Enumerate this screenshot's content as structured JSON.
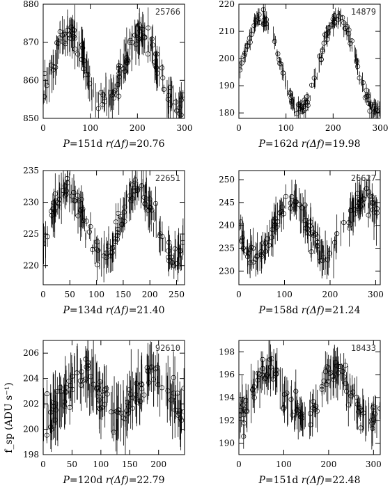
{
  "figure": {
    "ylabel": "f_sp (ADU s⁻¹)"
  },
  "chart_data": [
    {
      "type": "scatter",
      "star_id": "25766",
      "caption": "P=151d r(Δf)=20.76",
      "caption_parts": {
        "prefix": "P",
        "period": "=151d",
        "r": " r(Δf)",
        "rval": "=20.76"
      },
      "period": 151,
      "mean": 863,
      "amplitude": 9,
      "phase_peak": 55,
      "noise": 3,
      "xlim": [
        0,
        300
      ],
      "ylim": [
        850,
        880
      ],
      "xticks": [
        0,
        100,
        200,
        300
      ],
      "yticks": [
        850,
        860,
        870,
        880
      ],
      "xdata_range": [
        0,
        300
      ],
      "n_points": 200
    },
    {
      "type": "scatter",
      "star_id": "14879",
      "caption": "P=162d r(Δf)=19.98",
      "caption_parts": {
        "prefix": "P",
        "period": "=162d",
        "r": " r(Δf)",
        "rval": "=19.98"
      },
      "period": 162,
      "mean": 198,
      "amplitude": 17,
      "phase_peak": 48,
      "noise": 2,
      "xlim": [
        0,
        300
      ],
      "ylim": [
        178,
        220
      ],
      "xticks": [
        0,
        100,
        200,
        300
      ],
      "yticks": [
        180,
        190,
        200,
        210,
        220
      ],
      "xdata_range": [
        0,
        300
      ],
      "n_points": 200
    },
    {
      "type": "scatter",
      "star_id": "22651",
      "caption": "P=134d r(Δf)=21.40",
      "caption_parts": {
        "prefix": "P",
        "period": "=134d",
        "r": " r(Δf)",
        "rval": "=21.40"
      },
      "period": 134,
      "mean": 226.5,
      "amplitude": 5.5,
      "phase_peak": 45,
      "noise": 1.8,
      "xlim": [
        0,
        265
      ],
      "ylim": [
        217,
        235
      ],
      "xticks": [
        0,
        50,
        100,
        150,
        200,
        250
      ],
      "yticks": [
        220,
        225,
        230,
        235
      ],
      "xdata_range": [
        0,
        265
      ],
      "n_points": 200
    },
    {
      "type": "scatter",
      "star_id": "26627",
      "caption": "P=158d r(Δf)=21.24",
      "caption_parts": {
        "prefix": "P",
        "period": "=158d",
        "r": " r(Δf)",
        "rval": "=21.24"
      },
      "period": 158,
      "mean": 239.5,
      "amplitude": 6.5,
      "phase_peak": 115,
      "noise": 2.5,
      "xlim": [
        0,
        310
      ],
      "ylim": [
        227,
        252
      ],
      "xticks": [
        0,
        100,
        200,
        300
      ],
      "yticks": [
        230,
        235,
        240,
        245,
        250
      ],
      "xdata_range": [
        0,
        310
      ],
      "n_points": 200
    },
    {
      "type": "scatter",
      "star_id": "92610",
      "caption": "P=120d r(Δf)=22.79",
      "caption_parts": {
        "prefix": "P",
        "period": "=120d",
        "r": " r(Δf)",
        "rval": "=22.79"
      },
      "period": 120,
      "mean": 202.8,
      "amplitude": 1.5,
      "phase_peak": 70,
      "noise": 1.3,
      "xlim": [
        0,
        245
      ],
      "ylim": [
        198,
        207
      ],
      "xticks": [
        0,
        50,
        100,
        150,
        200
      ],
      "yticks": [
        198,
        200,
        202,
        204,
        206
      ],
      "xdata_range": [
        0,
        245
      ],
      "n_points": 200
    },
    {
      "type": "scatter",
      "star_id": "18433",
      "caption": "P=151d r(Δf)=22.48",
      "caption_parts": {
        "prefix": "P",
        "period": "=151d",
        "r": " r(Δf)",
        "rval": "=22.48"
      },
      "period": 151,
      "mean": 194.2,
      "amplitude": 2.2,
      "phase_peak": 65,
      "noise": 1.1,
      "xlim": [
        0,
        315
      ],
      "ylim": [
        189,
        199
      ],
      "xticks": [
        0,
        100,
        200,
        300
      ],
      "yticks": [
        190,
        192,
        194,
        196,
        198
      ],
      "xdata_range": [
        0,
        315
      ],
      "n_points": 200
    }
  ]
}
